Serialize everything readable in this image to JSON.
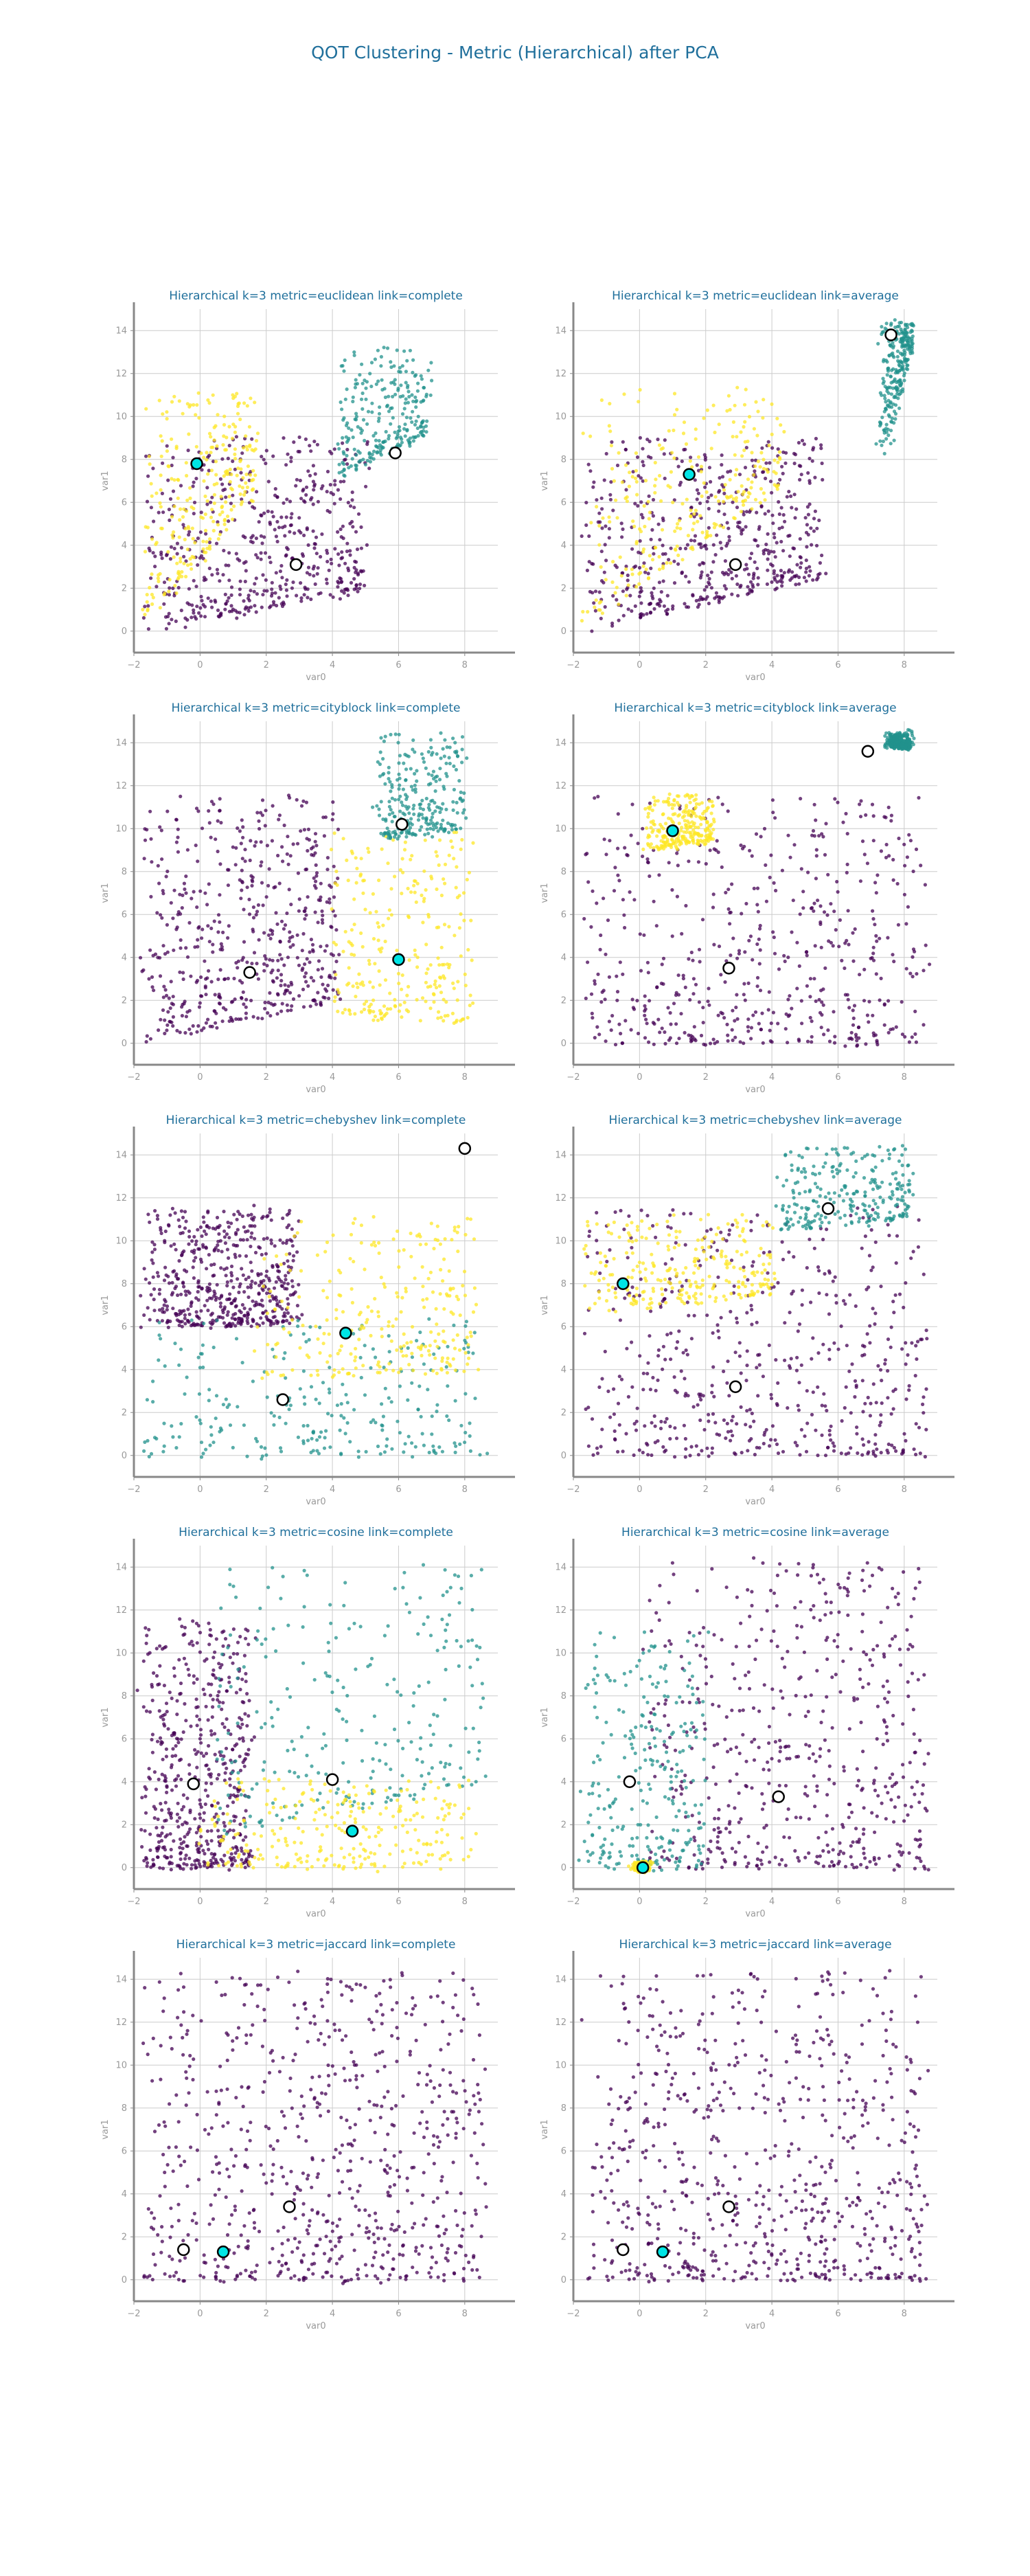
{
  "title": "QOT Clustering - Metric (Hierarchical) after PCA",
  "colors": {
    "title": "#1f6f9b",
    "axis_text": "#999999",
    "cluster_0": "#440154",
    "cluster_1": "#21918c",
    "cluster_2": "#fde725",
    "centroid_fill_white": "#ffffff",
    "centroid_fill_cyan": "#00e5e5",
    "centroid_edge": "#000000"
  },
  "chart_data": [
    {
      "type": "scatter",
      "title": "Hierarchical k=3 metric=euclidean link=complete",
      "xlabel": "var0",
      "ylabel": "var1",
      "xlim": [
        -2,
        9
      ],
      "ylim": [
        -1,
        15
      ],
      "xticks": [
        -2,
        0,
        2,
        4,
        6,
        8
      ],
      "yticks": [
        0,
        2,
        4,
        6,
        8,
        10,
        12,
        14
      ],
      "grid": true,
      "clusters": [
        {
          "cluster": 0,
          "color": "#440154",
          "regions": [
            [
              -1.7,
              0,
              5,
              2,
              9,
              6.6,
              4.6,
              6,
              8.6,
              7.0
            ]
          ]
        },
        {
          "cluster": 2,
          "color": "#fde725",
          "regions": [
            [
              -1.8,
              0,
              1.7,
              6.3,
              11.2
            ]
          ]
        },
        {
          "cluster": 1,
          "color": "#21918c",
          "regions": [
            [
              4.2,
              7.2,
              6.9,
              9.2,
              13.2
            ]
          ]
        }
      ],
      "centroids": [
        {
          "x": -0.1,
          "y": 7.8,
          "fill": "cyan"
        },
        {
          "x": 2.9,
          "y": 3.1,
          "fill": "white"
        },
        {
          "x": 5.9,
          "y": 8.3,
          "fill": "white"
        }
      ]
    },
    {
      "type": "scatter",
      "title": "Hierarchical k=3 metric=euclidean link=average",
      "xlabel": "var0",
      "ylabel": "var1",
      "xlim": [
        -2,
        9
      ],
      "ylim": [
        -1,
        15
      ],
      "xticks": [
        -2,
        0,
        2,
        4,
        6,
        8
      ],
      "yticks": [
        0,
        2,
        4,
        6,
        8,
        10,
        12,
        14
      ],
      "grid": true,
      "clusters": [
        {
          "cluster": 0,
          "color": "#440154",
          "regions": [
            [
              -1.7,
              0,
              5.5,
              2.5,
              9,
              6.6,
              4.6,
              6,
              8.6,
              7.0
            ]
          ]
        },
        {
          "cluster": 2,
          "color": "#fde725",
          "regions": [
            [
              -1.8,
              0,
              4.3,
              6.8,
              11.3
            ]
          ]
        },
        {
          "cluster": 1,
          "color": "#21918c",
          "regions": [
            [
              7.3,
              7.9,
              8.2,
              13.4,
              14.4
            ]
          ]
        }
      ],
      "centroids": [
        {
          "x": 1.5,
          "y": 7.3,
          "fill": "cyan"
        },
        {
          "x": 2.9,
          "y": 3.1,
          "fill": "white"
        },
        {
          "x": 7.6,
          "y": 13.8,
          "fill": "white"
        }
      ]
    },
    {
      "type": "scatter",
      "title": "Hierarchical k=3 metric=cityblock link=complete",
      "xlabel": "var0",
      "ylabel": "var1",
      "xlim": [
        -2,
        9
      ],
      "ylim": [
        -1,
        15
      ],
      "xticks": [
        -2,
        0,
        2,
        4,
        6,
        8
      ],
      "yticks": [
        0,
        2,
        4,
        6,
        8,
        10,
        12,
        14
      ],
      "grid": true,
      "clusters": [
        {
          "cluster": 0,
          "color": "#440154",
          "regions": [
            [
              -1.7,
              0,
              4.2,
              2,
              11.5
            ]
          ]
        },
        {
          "cluster": 2,
          "color": "#fde725",
          "regions": [
            [
              4.0,
              1.2,
              8.2,
              1,
              9.8
            ]
          ]
        },
        {
          "cluster": 1,
          "color": "#21918c",
          "regions": [
            [
              5.3,
              9.5,
              8.0,
              10.0,
              14.4
            ]
          ]
        }
      ],
      "centroids": [
        {
          "x": 1.5,
          "y": 3.3,
          "fill": "white"
        },
        {
          "x": 6.0,
          "y": 3.9,
          "fill": "cyan"
        },
        {
          "x": 6.1,
          "y": 10.2,
          "fill": "white"
        }
      ]
    },
    {
      "type": "scatter",
      "title": "Hierarchical k=3 metric=cityblock link=average",
      "xlabel": "var0",
      "ylabel": "var1",
      "xlim": [
        -2,
        9
      ],
      "ylim": [
        -1,
        15
      ],
      "xticks": [
        -2,
        0,
        2,
        4,
        6,
        8
      ],
      "yticks": [
        0,
        2,
        4,
        6,
        8,
        10,
        12,
        14
      ],
      "grid": true,
      "clusters": [
        {
          "cluster": 0,
          "color": "#440154",
          "regions": [
            [
              -1.7,
              0,
              8.6,
              0,
              11.5
            ]
          ]
        },
        {
          "cluster": 2,
          "color": "#fde725",
          "regions": [
            [
              0.2,
              9.0,
              2.2,
              9.5,
              11.6
            ]
          ]
        },
        {
          "cluster": 1,
          "color": "#21918c",
          "regions": [
            [
              7.5,
              13.8,
              8.2,
              13.8,
              14.4
            ]
          ]
        }
      ],
      "centroids": [
        {
          "x": 1.0,
          "y": 9.9,
          "fill": "cyan"
        },
        {
          "x": 2.7,
          "y": 3.5,
          "fill": "white"
        },
        {
          "x": 6.9,
          "y": 13.6,
          "fill": "white"
        }
      ]
    },
    {
      "type": "scatter",
      "title": "Hierarchical k=3 metric=chebyshev link=complete",
      "xlabel": "var0",
      "ylabel": "var1",
      "xlim": [
        -2,
        9
      ],
      "ylim": [
        -1,
        15
      ],
      "xticks": [
        -2,
        0,
        2,
        4,
        6,
        8
      ],
      "yticks": [
        0,
        2,
        4,
        6,
        8,
        10,
        12,
        14
      ],
      "grid": true,
      "clusters": [
        {
          "cluster": 0,
          "color": "#440154",
          "regions": [
            [
              -1.7,
              6.0,
              3.0,
              6.2,
              11.5
            ]
          ]
        },
        {
          "cluster": 1,
          "color": "#21918c",
          "regions": [
            [
              -1.7,
              0,
              8.6,
              0,
              6.4
            ]
          ]
        },
        {
          "cluster": 2,
          "color": "#fde725",
          "regions": [
            [
              1.8,
              3.6,
              8.4,
              4.0,
              11.0
            ]
          ]
        }
      ],
      "centroids": [
        {
          "x": 2.5,
          "y": 2.6,
          "fill": "white"
        },
        {
          "x": 4.4,
          "y": 5.7,
          "fill": "cyan"
        },
        {
          "x": 8.0,
          "y": 14.3,
          "fill": "white"
        }
      ]
    },
    {
      "type": "scatter",
      "title": "Hierarchical k=3 metric=chebyshev link=average",
      "xlabel": "var0",
      "ylabel": "var1",
      "xlim": [
        -2,
        9
      ],
      "ylim": [
        -1,
        15
      ],
      "xticks": [
        -2,
        0,
        2,
        4,
        6,
        8
      ],
      "yticks": [
        0,
        2,
        4,
        6,
        8,
        10,
        12,
        14
      ],
      "grid": true,
      "clusters": [
        {
          "cluster": 0,
          "color": "#440154",
          "regions": [
            [
              -1.7,
              0,
              8.6,
              0,
              11.5
            ]
          ]
        },
        {
          "cluster": 2,
          "color": "#fde725",
          "regions": [
            [
              -1.7,
              6.6,
              4.0,
              7.5,
              11.2
            ]
          ]
        },
        {
          "cluster": 1,
          "color": "#21918c",
          "regions": [
            [
              4.2,
              10.5,
              8.2,
              11.0,
              14.4
            ]
          ]
        }
      ],
      "centroids": [
        {
          "x": -0.5,
          "y": 8.0,
          "fill": "cyan"
        },
        {
          "x": 2.9,
          "y": 3.2,
          "fill": "white"
        },
        {
          "x": 5.7,
          "y": 11.5,
          "fill": "white"
        }
      ]
    },
    {
      "type": "scatter",
      "title": "Hierarchical k=3 metric=cosine link=complete",
      "xlabel": "var0",
      "ylabel": "var1",
      "xlim": [
        -2,
        9
      ],
      "ylim": [
        -1,
        15
      ],
      "xticks": [
        -2,
        0,
        2,
        4,
        6,
        8
      ],
      "yticks": [
        0,
        2,
        4,
        6,
        8,
        10,
        12,
        14
      ],
      "grid": true,
      "clusters": [
        {
          "cluster": 0,
          "color": "#440154",
          "regions": [
            [
              -1.7,
              0,
              1.5,
              0,
              11.5
            ]
          ]
        },
        {
          "cluster": 1,
          "color": "#21918c",
          "regions": [
            [
              0.5,
              1.5,
              8.6,
              4.0,
              14.4
            ]
          ]
        },
        {
          "cluster": 2,
          "color": "#fde725",
          "regions": [
            [
              0,
              0,
              8.2,
              0,
              4.1
            ]
          ]
        }
      ],
      "centroids": [
        {
          "x": -0.2,
          "y": 3.9,
          "fill": "white"
        },
        {
          "x": 4.0,
          "y": 4.1,
          "fill": "white"
        },
        {
          "x": 4.6,
          "y": 1.7,
          "fill": "cyan"
        }
      ]
    },
    {
      "type": "scatter",
      "title": "Hierarchical k=3 metric=cosine link=average",
      "xlabel": "var0",
      "ylabel": "var1",
      "xlim": [
        -2,
        9
      ],
      "ylim": [
        -1,
        15
      ],
      "xticks": [
        -2,
        0,
        2,
        4,
        6,
        8
      ],
      "yticks": [
        0,
        2,
        4,
        6,
        8,
        10,
        12,
        14
      ],
      "grid": true,
      "clusters": [
        {
          "cluster": 0,
          "color": "#440154",
          "regions": [
            [
              0.2,
              0,
              8.6,
              0,
              14.4
            ]
          ]
        },
        {
          "cluster": 1,
          "color": "#21918c",
          "regions": [
            [
              -1.7,
              0,
              2.0,
              0,
              11.0
            ]
          ]
        },
        {
          "cluster": 2,
          "color": "#fde725",
          "regions": [
            [
              -0.1,
              -0.1,
              0.2,
              -0.1,
              0.2
            ]
          ]
        }
      ],
      "centroids": [
        {
          "x": -0.3,
          "y": 4.0,
          "fill": "white"
        },
        {
          "x": 4.2,
          "y": 3.3,
          "fill": "white"
        },
        {
          "x": 0.1,
          "y": 0.0,
          "fill": "cyan"
        }
      ]
    },
    {
      "type": "scatter",
      "title": "Hierarchical k=3 metric=jaccard link=complete",
      "xlabel": "var0",
      "ylabel": "var1",
      "xlim": [
        -2,
        9
      ],
      "ylim": [
        -1,
        15
      ],
      "xticks": [
        -2,
        0,
        2,
        4,
        6,
        8
      ],
      "yticks": [
        0,
        2,
        4,
        6,
        8,
        10,
        12,
        14
      ],
      "grid": true,
      "clusters": [
        {
          "cluster": 0,
          "color": "#440154",
          "regions": [
            [
              -1.7,
              0,
              8.6,
              0,
              14.4
            ]
          ]
        }
      ],
      "centroids": [
        {
          "x": -0.5,
          "y": 1.4,
          "fill": "white"
        },
        {
          "x": 0.7,
          "y": 1.3,
          "fill": "cyan"
        },
        {
          "x": 2.7,
          "y": 3.4,
          "fill": "white"
        }
      ]
    },
    {
      "type": "scatter",
      "title": "Hierarchical k=3 metric=jaccard link=average",
      "xlabel": "var0",
      "ylabel": "var1",
      "xlim": [
        -2,
        9
      ],
      "ylim": [
        -1,
        15
      ],
      "xticks": [
        -2,
        0,
        2,
        4,
        6,
        8
      ],
      "yticks": [
        0,
        2,
        4,
        6,
        8,
        10,
        12,
        14
      ],
      "grid": true,
      "clusters": [
        {
          "cluster": 0,
          "color": "#440154",
          "regions": [
            [
              -1.7,
              0,
              8.6,
              0,
              14.4
            ]
          ]
        }
      ],
      "centroids": [
        {
          "x": -0.5,
          "y": 1.4,
          "fill": "white"
        },
        {
          "x": 0.7,
          "y": 1.3,
          "fill": "cyan"
        },
        {
          "x": 2.7,
          "y": 3.4,
          "fill": "white"
        }
      ]
    }
  ]
}
